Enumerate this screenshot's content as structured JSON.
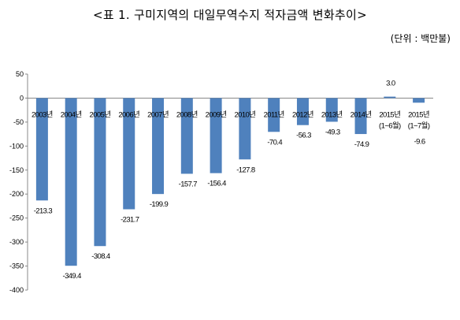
{
  "title": "<표 1. 구미지역의 대일무역수지 적자금액 변화추이>",
  "unit": "(단위 : 백만불)",
  "chart_data": {
    "type": "bar",
    "categories": [
      "2003년",
      "2004년",
      "2005년",
      "2006년",
      "2007년",
      "2008년",
      "2009년",
      "2010년",
      "2011년",
      "2012년",
      "2013년",
      "2014년",
      "2015년 (1~6월)",
      "2015년 (1~7월)"
    ],
    "values": [
      -213.3,
      -349.4,
      -308.4,
      -231.7,
      -199.9,
      -157.7,
      -156.4,
      -127.8,
      -70.4,
      -56.3,
      -49.3,
      -74.9,
      3.0,
      -9.6
    ],
    "data_labels": [
      "-213.3",
      "-349.4",
      "-308.4",
      "-231.7",
      "-199.9",
      "-157.7",
      "-156.4",
      "-127.8",
      "-70.4",
      "-56.3",
      "-49.3",
      "-74.9",
      "3.0",
      "-9.6"
    ],
    "ylim": [
      -400,
      50
    ],
    "yticks": [
      50,
      0,
      -50,
      -100,
      -150,
      -200,
      -250,
      -300,
      -350,
      -400
    ],
    "ytick_labels": [
      "50",
      "0",
      "-50",
      "-100",
      "-150",
      "-200",
      "-250",
      "-300",
      "-350",
      "-400"
    ],
    "title": "<표 1. 구미지역의 대일무역수지 적자금액 변화추이>",
    "xlabel": "",
    "ylabel": "",
    "bar_color": "#4f81bd",
    "grid": false,
    "legend": "none"
  }
}
